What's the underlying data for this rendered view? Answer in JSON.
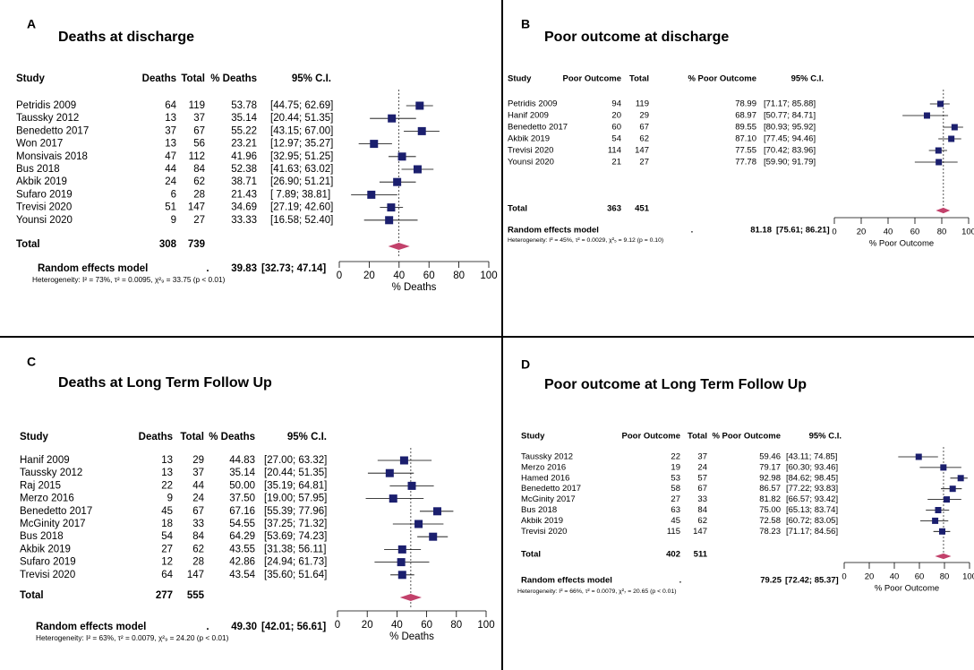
{
  "chart_data": [
    {
      "type": "forest",
      "label": "A",
      "title": "Deaths at discharge",
      "headers": [
        "Study",
        "Deaths",
        "Total",
        "% Deaths",
        "95% C.I."
      ],
      "categories": [
        "Petridis 2009",
        "Taussky 2012",
        "Benedetto 2017",
        "Won 2017",
        "Monsivais 2018",
        "Bus 2018",
        "Akbik 2019",
        "Sufaro 2019",
        "Trevisi 2020",
        "Younsi 2020"
      ],
      "events": [
        64,
        13,
        37,
        13,
        47,
        44,
        24,
        6,
        51,
        9
      ],
      "totals": [
        119,
        37,
        67,
        56,
        112,
        84,
        62,
        28,
        147,
        27
      ],
      "values": [
        53.78,
        35.14,
        55.22,
        23.21,
        41.96,
        52.38,
        38.71,
        21.43,
        34.69,
        33.33
      ],
      "value_labels": [
        "53.78",
        "35.14",
        "55.22",
        "23.21",
        "41.96",
        "52.38",
        "38.71",
        "21.43",
        "34.69",
        "33.33"
      ],
      "ci_low": [
        44.75,
        20.44,
        43.15,
        12.97,
        32.95,
        41.63,
        26.9,
        7.89,
        27.19,
        16.58
      ],
      "ci_high": [
        62.69,
        51.35,
        67,
        35.27,
        51.25,
        63.02,
        51.21,
        38.81,
        42.6,
        52.4
      ],
      "ci_labels": [
        "[44.75; 62.69]",
        "[20.44; 51.35]",
        "[43.15; 67.00]",
        "[12.97; 35.27]",
        "[32.95; 51.25]",
        "[41.63; 63.02]",
        "[26.90; 51.21]",
        "[ 7.89; 38.81]",
        "[27.19; 42.60]",
        "[16.58; 52.40]"
      ],
      "total_label": "Total",
      "total_events": 308,
      "total_n": 739,
      "model_label": "Random effects model",
      "model_dot": ".",
      "model_value": 39.83,
      "model_value_label": "39.83",
      "model_ci_low": 32.73,
      "model_ci_high": 47.14,
      "model_ci_label": "[32.73; 47.14]",
      "heterogeneity": "Heterogeneity: I² = 73%, τ² = 0.0095, χ²₉ = 33.75 (p < 0.01)",
      "xlabel": "% Deaths",
      "xlim": [
        0,
        100
      ],
      "xticks": [
        0,
        20,
        40,
        60,
        80,
        100
      ],
      "color": "#1b1f6e",
      "diamond_color": "#c2416b"
    },
    {
      "type": "forest",
      "label": "B",
      "title": "Poor outcome at discharge",
      "headers": [
        "Study",
        "Poor Outcome",
        "Total",
        "% Poor Outcome",
        "95% C.I."
      ],
      "categories": [
        "Petridis 2009",
        "Hanif 2009",
        "Benedetto 2017",
        "Akbik 2019",
        "Trevisi 2020",
        "Younsi 2020"
      ],
      "events": [
        94,
        20,
        60,
        54,
        114,
        21
      ],
      "totals": [
        119,
        29,
        67,
        62,
        147,
        27
      ],
      "values": [
        78.99,
        68.97,
        89.55,
        87.1,
        77.55,
        77.78
      ],
      "value_labels": [
        "78.99",
        "68.97",
        "89.55",
        "87.10",
        "77.55",
        "77.78"
      ],
      "ci_low": [
        71.17,
        50.77,
        80.93,
        77.45,
        70.42,
        59.9
      ],
      "ci_high": [
        85.88,
        84.71,
        95.92,
        94.46,
        83.96,
        91.79
      ],
      "ci_labels": [
        "[71.17; 85.88]",
        "[50.77; 84.71]",
        "[80.93; 95.92]",
        "[77.45; 94.46]",
        "[70.42; 83.96]",
        "[59.90; 91.79]"
      ],
      "total_label": "Total",
      "total_events": 363,
      "total_n": 451,
      "model_label": "Random effects model",
      "model_dot": ".",
      "model_value": 81.18,
      "model_value_label": "81.18",
      "model_ci_low": 75.61,
      "model_ci_high": 86.21,
      "model_ci_label": "[75.61; 86.21]",
      "heterogeneity": "Heterogeneity: I² = 45%, τ² = 0.0029, χ²₅ = 9.12 (p = 0.10)",
      "xlabel": "% Poor Outcome",
      "xlim": [
        0,
        100
      ],
      "xticks": [
        0,
        20,
        40,
        60,
        80,
        100
      ],
      "color": "#1b1f6e",
      "diamond_color": "#c2416b"
    },
    {
      "type": "forest",
      "label": "C",
      "title": "Deaths at Long Term Follow Up",
      "headers": [
        "Study",
        "Deaths",
        "Total",
        "% Deaths",
        "95% C.I."
      ],
      "categories": [
        "Hanif 2009",
        "Taussky 2012",
        "Raj 2015",
        "Merzo 2016",
        "Benedetto 2017",
        "McGinity 2017",
        "Bus 2018",
        "Akbik 2019",
        "Sufaro 2019",
        "Trevisi 2020"
      ],
      "events": [
        13,
        13,
        22,
        9,
        45,
        18,
        54,
        27,
        12,
        64
      ],
      "totals": [
        29,
        37,
        44,
        24,
        67,
        33,
        84,
        62,
        28,
        147
      ],
      "values": [
        44.83,
        35.14,
        50,
        37.5,
        67.16,
        54.55,
        64.29,
        43.55,
        42.86,
        43.54
      ],
      "value_labels": [
        "44.83",
        "35.14",
        "50.00",
        "37.50",
        "67.16",
        "54.55",
        "64.29",
        "43.55",
        "42.86",
        "43.54"
      ],
      "ci_low": [
        27,
        20.44,
        35.19,
        19,
        55.39,
        37.25,
        53.69,
        31.38,
        24.94,
        35.6
      ],
      "ci_high": [
        63.32,
        51.35,
        64.81,
        57.95,
        77.96,
        71.32,
        74.23,
        56.11,
        61.73,
        51.64
      ],
      "ci_labels": [
        "[27.00; 63.32]",
        "[20.44; 51.35]",
        "[35.19; 64.81]",
        "[19.00; 57.95]",
        "[55.39; 77.96]",
        "[37.25; 71.32]",
        "[53.69; 74.23]",
        "[31.38; 56.11]",
        "[24.94; 61.73]",
        "[35.60; 51.64]"
      ],
      "total_label": "Total",
      "total_events": 277,
      "total_n": 555,
      "model_label": "Random effects model",
      "model_dot": ".",
      "model_value": 49.3,
      "model_value_label": "49.30",
      "model_ci_low": 42.01,
      "model_ci_high": 56.61,
      "model_ci_label": "[42.01; 56.61]",
      "heterogeneity": "Heterogeneity: I² = 63%, τ² = 0.0079, χ²₉ = 24.20 (p < 0.01)",
      "xlabel": "% Deaths",
      "xlim": [
        0,
        100
      ],
      "xticks": [
        0,
        20,
        40,
        60,
        80,
        100
      ],
      "color": "#1b1f6e",
      "diamond_color": "#c2416b"
    },
    {
      "type": "forest",
      "label": "D",
      "title": "Poor outcome at Long Term Follow Up",
      "headers": [
        "Study",
        "Poor Outcome",
        "Total",
        "% Poor Outcome",
        "95% C.I."
      ],
      "categories": [
        "Taussky 2012",
        "Merzo 2016",
        "Hamed 2016",
        "Benedetto 2017",
        "McGinity 2017",
        "Bus 2018",
        "Akbik 2019",
        "Trevisi 2020"
      ],
      "events": [
        22,
        19,
        53,
        58,
        27,
        63,
        45,
        115
      ],
      "totals": [
        37,
        24,
        57,
        67,
        33,
        84,
        62,
        147
      ],
      "values": [
        59.46,
        79.17,
        92.98,
        86.57,
        81.82,
        75,
        72.58,
        78.23
      ],
      "value_labels": [
        "59.46",
        "79.17",
        "92.98",
        "86.57",
        "81.82",
        "75.00",
        "72.58",
        "78.23"
      ],
      "ci_low": [
        43.11,
        60.3,
        84.62,
        77.22,
        66.57,
        65.13,
        60.72,
        71.17
      ],
      "ci_high": [
        74.85,
        93.46,
        98.45,
        93.83,
        93.42,
        83.74,
        83.05,
        84.56
      ],
      "ci_labels": [
        "[43.11; 74.85]",
        "[60.30; 93.46]",
        "[84.62; 98.45]",
        "[77.22; 93.83]",
        "[66.57; 93.42]",
        "[65.13; 83.74]",
        "[60.72; 83.05]",
        "[71.17; 84.56]"
      ],
      "total_label": "Total",
      "total_events": 402,
      "total_n": 511,
      "model_label": "Random effects model",
      "model_dot": ".",
      "model_value": 79.25,
      "model_value_label": "79.25",
      "model_ci_low": 72.42,
      "model_ci_high": 85.37,
      "model_ci_label": "[72.42; 85.37]",
      "heterogeneity": "Heterogeneity: I² = 66%, τ² = 0.0079, χ²₇ = 20.65 (p < 0.01)",
      "xlabel": "% Poor Outcome",
      "xlim": [
        0,
        100
      ],
      "xticks": [
        0,
        20,
        40,
        60,
        80,
        100
      ],
      "color": "#1b1f6e",
      "diamond_color": "#c2416b"
    }
  ]
}
